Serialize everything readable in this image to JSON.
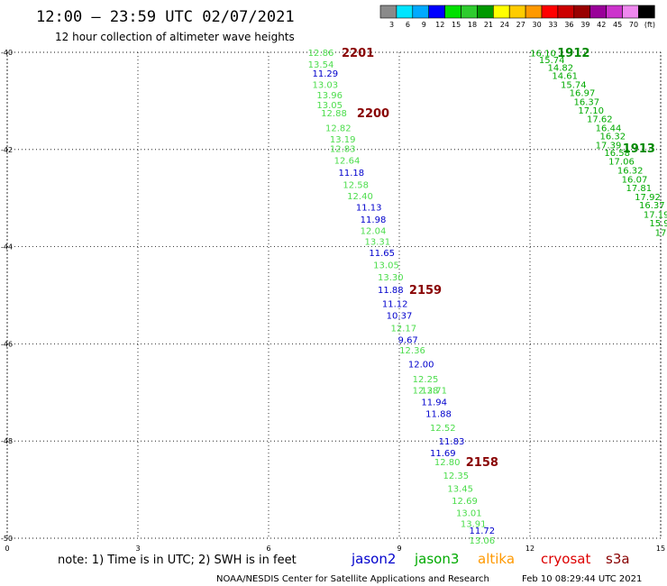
{
  "header": {
    "title": "12:00 – 23:59 UTC 02/07/2021",
    "subtitle": "12 hour collection of altimeter wave heights"
  },
  "legend": {
    "labels": [
      "3",
      "6",
      "9",
      "12",
      "15",
      "18",
      "21",
      "24",
      "27",
      "30",
      "33",
      "36",
      "39",
      "42",
      "45",
      "70",
      "(ft)"
    ],
    "colors": [
      "#8a8a8a",
      "#00e5ff",
      "#00aaff",
      "#0000ff",
      "#00e000",
      "#2ecc2e",
      "#009900",
      "#ffff00",
      "#ffcc00",
      "#ff9900",
      "#ff0000",
      "#cc0000",
      "#990000",
      "#990099",
      "#cc33cc",
      "#ee88ee",
      "#000000"
    ]
  },
  "note": "note: 1) Time is in UTC; 2) SWH is in feet",
  "satellites": [
    {
      "name": "jason2",
      "color": "#0000cc"
    },
    {
      "name": "jason3",
      "color": "#00aa00"
    },
    {
      "name": "altika",
      "color": "#ff9900"
    },
    {
      "name": "cryosat",
      "color": "#dd0000"
    },
    {
      "name": "s3a",
      "color": "#880000"
    }
  ],
  "footer": {
    "credit": "NOAA/NESDIS Center for Satellite Applications and Research",
    "timestamp": "Feb 10 08:29:44 UTC 2021"
  },
  "chart_data": {
    "type": "scatter",
    "xlim": [
      0,
      15
    ],
    "ylim": [
      -50,
      -40
    ],
    "xticks": [
      "0",
      "3",
      "6",
      "9",
      "12",
      "15"
    ],
    "yticks": [
      "-40",
      "-42",
      "-44",
      "-46",
      "-48",
      "-50"
    ],
    "grid": true,
    "series": [
      {
        "name": "jason2",
        "color": "#0000cc",
        "points": [
          {
            "x": 7.3,
            "y": -40.43,
            "v": "11.29"
          },
          {
            "x": 7.9,
            "y": -42.47,
            "v": "11.18"
          },
          {
            "x": 8.3,
            "y": -43.18,
            "v": "11.13"
          },
          {
            "x": 8.4,
            "y": -43.43,
            "v": "11.98"
          },
          {
            "x": 8.6,
            "y": -44.12,
            "v": "11.65"
          },
          {
            "x": 8.8,
            "y": -44.88,
            "v": "11.88"
          },
          {
            "x": 8.9,
            "y": -45.17,
            "v": "11.12"
          },
          {
            "x": 9.0,
            "y": -45.41,
            "v": "10.37"
          },
          {
            "x": 9.2,
            "y": -45.91,
            "v": "9.67"
          },
          {
            "x": 9.5,
            "y": -46.41,
            "v": "12.00"
          },
          {
            "x": 9.8,
            "y": -47.19,
            "v": "11.94"
          },
          {
            "x": 9.9,
            "y": -47.43,
            "v": "11.88"
          },
          {
            "x": 10.2,
            "y": -48.0,
            "v": "11.83"
          },
          {
            "x": 10.0,
            "y": -48.24,
            "v": "11.69"
          },
          {
            "x": 10.9,
            "y": -49.83,
            "v": "11.72"
          }
        ]
      },
      {
        "name": "jason3",
        "color": "#00aa00",
        "points": [
          {
            "x": 12.3,
            "y": -40.01,
            "v": "16.10"
          },
          {
            "x": 12.5,
            "y": -40.15,
            "v": "15.74"
          },
          {
            "x": 12.7,
            "y": -40.31,
            "v": "14.82"
          },
          {
            "x": 12.8,
            "y": -40.47,
            "v": "14.61"
          },
          {
            "x": 13.0,
            "y": -40.66,
            "v": "15.74"
          },
          {
            "x": 13.2,
            "y": -40.83,
            "v": "16.97"
          },
          {
            "x": 13.3,
            "y": -41.01,
            "v": "16.37"
          },
          {
            "x": 13.4,
            "y": -41.19,
            "v": "17.10"
          },
          {
            "x": 13.6,
            "y": -41.36,
            "v": "17.62"
          },
          {
            "x": 13.8,
            "y": -41.55,
            "v": "16.44"
          },
          {
            "x": 13.9,
            "y": -41.72,
            "v": "16.32"
          },
          {
            "x": 13.8,
            "y": -41.9,
            "v": "17.39"
          },
          {
            "x": 14.0,
            "y": -42.06,
            "v": "16.58"
          },
          {
            "x": 14.1,
            "y": -42.24,
            "v": "17.06"
          },
          {
            "x": 14.3,
            "y": -42.42,
            "v": "16.32"
          },
          {
            "x": 14.4,
            "y": -42.61,
            "v": "16.07"
          },
          {
            "x": 14.5,
            "y": -42.78,
            "v": "17.81"
          },
          {
            "x": 14.7,
            "y": -42.97,
            "v": "17.92"
          },
          {
            "x": 14.8,
            "y": -43.14,
            "v": "16.37"
          },
          {
            "x": 14.9,
            "y": -43.33,
            "v": "17.19"
          },
          {
            "x": 14.97,
            "y": -43.51,
            "v": "15.9"
          },
          {
            "x": 15.0,
            "y": -43.7,
            "v": "17"
          }
        ]
      },
      {
        "name": "jason3-light",
        "color": "#4cdd4c",
        "points": [
          {
            "x": 7.2,
            "y": -40.0,
            "v": "12.86"
          },
          {
            "x": 7.2,
            "y": -40.24,
            "v": "13.54"
          },
          {
            "x": 7.3,
            "y": -40.66,
            "v": "13.03"
          },
          {
            "x": 7.4,
            "y": -40.87,
            "v": "13.96"
          },
          {
            "x": 7.4,
            "y": -41.08,
            "v": "13.05"
          },
          {
            "x": 7.5,
            "y": -41.24,
            "v": "12.88"
          },
          {
            "x": 7.6,
            "y": -41.55,
            "v": "12.82"
          },
          {
            "x": 7.7,
            "y": -41.78,
            "v": "13.19"
          },
          {
            "x": 7.7,
            "y": -41.98,
            "v": "12.83"
          },
          {
            "x": 7.8,
            "y": -42.22,
            "v": "12.64"
          },
          {
            "x": 8.0,
            "y": -42.72,
            "v": "12.58"
          },
          {
            "x": 8.1,
            "y": -42.95,
            "v": "12.40"
          },
          {
            "x": 8.4,
            "y": -43.66,
            "v": "12.04"
          },
          {
            "x": 8.5,
            "y": -43.89,
            "v": "13.31"
          },
          {
            "x": 8.7,
            "y": -44.37,
            "v": "13.05"
          },
          {
            "x": 8.8,
            "y": -44.62,
            "v": "13.30"
          },
          {
            "x": 9.1,
            "y": -45.67,
            "v": "12.17"
          },
          {
            "x": 9.3,
            "y": -46.12,
            "v": "12.36"
          },
          {
            "x": 9.6,
            "y": -46.72,
            "v": "12.25"
          },
          {
            "x": 9.6,
            "y": -46.95,
            "v": "12.38"
          },
          {
            "x": 9.8,
            "y": -46.95,
            "v": "12.71"
          },
          {
            "x": 10.0,
            "y": -47.72,
            "v": "12.52"
          },
          {
            "x": 10.1,
            "y": -48.42,
            "v": "12.80"
          },
          {
            "x": 10.3,
            "y": -48.7,
            "v": "12.35"
          },
          {
            "x": 10.4,
            "y": -48.97,
            "v": "13.45"
          },
          {
            "x": 10.5,
            "y": -49.22,
            "v": "12.69"
          },
          {
            "x": 10.6,
            "y": -49.47,
            "v": "13.01"
          },
          {
            "x": 10.7,
            "y": -49.69,
            "v": "13.91"
          },
          {
            "x": 10.9,
            "y": -50.04,
            "v": "13.06"
          }
        ]
      }
    ],
    "track_labels": [
      {
        "x": 8.05,
        "y": -40.0,
        "text": "2201",
        "color": "#880000"
      },
      {
        "x": 8.4,
        "y": -41.24,
        "text": "2200",
        "color": "#880000"
      },
      {
        "x": 9.6,
        "y": -44.88,
        "text": "2159",
        "color": "#880000"
      },
      {
        "x": 10.9,
        "y": -48.42,
        "text": "2158",
        "color": "#880000"
      },
      {
        "x": 13.0,
        "y": -40.0,
        "text": "1912",
        "color": "#008800"
      },
      {
        "x": 14.5,
        "y": -41.97,
        "text": "1913",
        "color": "#008800"
      }
    ]
  }
}
